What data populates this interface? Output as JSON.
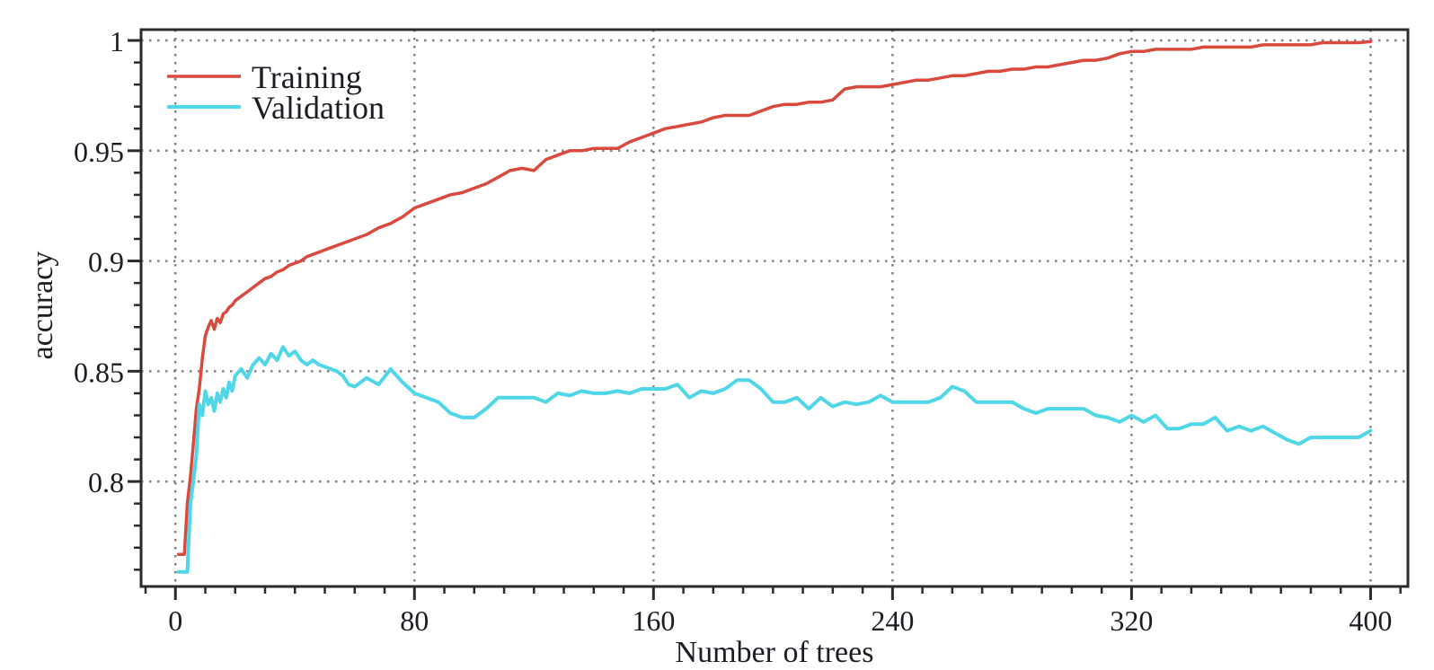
{
  "chart_data": {
    "type": "line",
    "title": "",
    "xlabel": "Number of trees",
    "ylabel": "accuracy",
    "x_ticks": [
      0,
      80,
      160,
      240,
      320,
      400
    ],
    "x_tick_labels": [
      "0",
      "80",
      "160",
      "240",
      "320",
      "400"
    ],
    "y_ticks": [
      0.8,
      0.85,
      0.9,
      0.95,
      1.0
    ],
    "y_tick_labels": [
      "0.8",
      "0.85",
      "0.9",
      "0.95",
      "1"
    ],
    "xlim": [
      -11.5,
      412.5
    ],
    "ylim": [
      0.7524,
      1.0049
    ],
    "x_minor_step": 10,
    "y_minor_step": 0.01,
    "grid": "dotted",
    "legend_position": "top-left",
    "colors": {
      "grid": "#828282",
      "axis": "#2b2b2b",
      "text": "#1b1d25",
      "background": "#ffffff"
    },
    "x": [
      1,
      2,
      3,
      4,
      5,
      6,
      7,
      8,
      9,
      10,
      11,
      12,
      13,
      14,
      15,
      16,
      17,
      18,
      19,
      20,
      22,
      24,
      26,
      28,
      30,
      32,
      34,
      36,
      38,
      40,
      42,
      44,
      46,
      48,
      50,
      52,
      54,
      56,
      58,
      60,
      64,
      68,
      72,
      76,
      80,
      84,
      88,
      92,
      96,
      100,
      104,
      108,
      112,
      116,
      120,
      124,
      128,
      132,
      136,
      140,
      144,
      148,
      152,
      156,
      160,
      164,
      168,
      172,
      176,
      180,
      184,
      188,
      192,
      196,
      200,
      204,
      208,
      212,
      216,
      220,
      224,
      228,
      232,
      236,
      240,
      244,
      248,
      252,
      256,
      260,
      264,
      268,
      272,
      276,
      280,
      284,
      288,
      292,
      296,
      300,
      304,
      308,
      312,
      316,
      320,
      324,
      328,
      332,
      336,
      340,
      344,
      348,
      352,
      356,
      360,
      364,
      368,
      372,
      376,
      380,
      384,
      388,
      392,
      396,
      400
    ],
    "series": [
      {
        "name": "Training",
        "color": "#d9493e",
        "values": [
          0.767,
          0.767,
          0.767,
          0.79,
          0.802,
          0.817,
          0.833,
          0.842,
          0.856,
          0.866,
          0.87,
          0.873,
          0.869,
          0.874,
          0.872,
          0.876,
          0.877,
          0.879,
          0.88,
          0.882,
          0.884,
          0.886,
          0.888,
          0.89,
          0.892,
          0.893,
          0.895,
          0.896,
          0.898,
          0.899,
          0.9,
          0.902,
          0.903,
          0.904,
          0.905,
          0.906,
          0.907,
          0.908,
          0.909,
          0.91,
          0.912,
          0.915,
          0.917,
          0.92,
          0.924,
          0.926,
          0.928,
          0.93,
          0.931,
          0.933,
          0.935,
          0.938,
          0.941,
          0.942,
          0.941,
          0.946,
          0.948,
          0.95,
          0.95,
          0.951,
          0.951,
          0.951,
          0.954,
          0.956,
          0.958,
          0.96,
          0.961,
          0.962,
          0.963,
          0.965,
          0.966,
          0.966,
          0.966,
          0.968,
          0.97,
          0.971,
          0.971,
          0.972,
          0.972,
          0.973,
          0.978,
          0.979,
          0.979,
          0.979,
          0.98,
          0.981,
          0.982,
          0.982,
          0.983,
          0.984,
          0.984,
          0.985,
          0.986,
          0.986,
          0.987,
          0.987,
          0.988,
          0.988,
          0.989,
          0.99,
          0.991,
          0.991,
          0.992,
          0.994,
          0.995,
          0.995,
          0.996,
          0.996,
          0.996,
          0.996,
          0.997,
          0.997,
          0.997,
          0.997,
          0.997,
          0.998,
          0.998,
          0.998,
          0.998,
          0.998,
          0.999,
          0.999,
          0.999,
          0.999,
          0.9995
        ]
      },
      {
        "name": "Validation",
        "color": "#4fd6e7",
        "values": [
          0.759,
          0.759,
          0.759,
          0.759,
          0.79,
          0.8,
          0.812,
          0.835,
          0.83,
          0.841,
          0.835,
          0.838,
          0.832,
          0.84,
          0.836,
          0.842,
          0.838,
          0.845,
          0.841,
          0.848,
          0.851,
          0.847,
          0.853,
          0.856,
          0.853,
          0.858,
          0.855,
          0.861,
          0.857,
          0.859,
          0.855,
          0.853,
          0.855,
          0.853,
          0.852,
          0.851,
          0.85,
          0.848,
          0.844,
          0.843,
          0.847,
          0.844,
          0.851,
          0.845,
          0.84,
          0.838,
          0.836,
          0.831,
          0.829,
          0.829,
          0.833,
          0.838,
          0.838,
          0.838,
          0.838,
          0.836,
          0.84,
          0.839,
          0.841,
          0.84,
          0.84,
          0.841,
          0.84,
          0.842,
          0.842,
          0.842,
          0.844,
          0.838,
          0.841,
          0.84,
          0.842,
          0.846,
          0.846,
          0.842,
          0.836,
          0.836,
          0.838,
          0.833,
          0.838,
          0.834,
          0.836,
          0.835,
          0.836,
          0.839,
          0.836,
          0.836,
          0.836,
          0.836,
          0.838,
          0.843,
          0.841,
          0.836,
          0.836,
          0.836,
          0.836,
          0.833,
          0.831,
          0.833,
          0.833,
          0.833,
          0.833,
          0.83,
          0.829,
          0.827,
          0.83,
          0.827,
          0.83,
          0.824,
          0.824,
          0.826,
          0.826,
          0.829,
          0.823,
          0.825,
          0.823,
          0.825,
          0.822,
          0.819,
          0.817,
          0.82,
          0.82,
          0.82,
          0.82,
          0.82,
          0.823
        ]
      }
    ]
  }
}
